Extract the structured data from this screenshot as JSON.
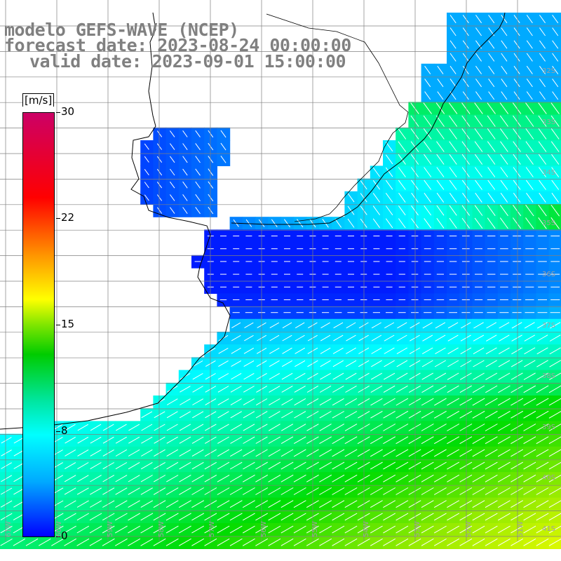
{
  "title": {
    "line1": "modelo GEFS-WAVE (NCEP)",
    "line2": "forecast date: 2023-08-24 00:00:00",
    "line3": "valid date: 2023-09-01 15:00:00"
  },
  "colorbar": {
    "unit": "[m/s]",
    "ticks": [
      "30",
      "22",
      "15",
      "8",
      "0"
    ],
    "min": 0,
    "max": 30,
    "colors": [
      "#0000ff",
      "#00aaff",
      "#00ffff",
      "#00cc00",
      "#ffff00",
      "#ff9900",
      "#ff0000",
      "#cc0066"
    ]
  },
  "map": {
    "lat_labels": [
      "32S",
      "33S",
      "34S",
      "35S",
      "36S",
      "37S",
      "38S",
      "39S",
      "40S",
      "41S"
    ],
    "lon_labels": [
      "61W",
      "60W",
      "59W",
      "58W",
      "57W",
      "56W",
      "55W",
      "54W",
      "53W",
      "52W",
      "51W"
    ],
    "lon_range": [
      -61.5,
      -50.5
    ],
    "lat_range": [
      -41.5,
      -30.5
    ],
    "colors": {
      "land": "#ffffff",
      "grid": "#808080",
      "coast": "#000000",
      "arrow": "#ffffff"
    }
  }
}
